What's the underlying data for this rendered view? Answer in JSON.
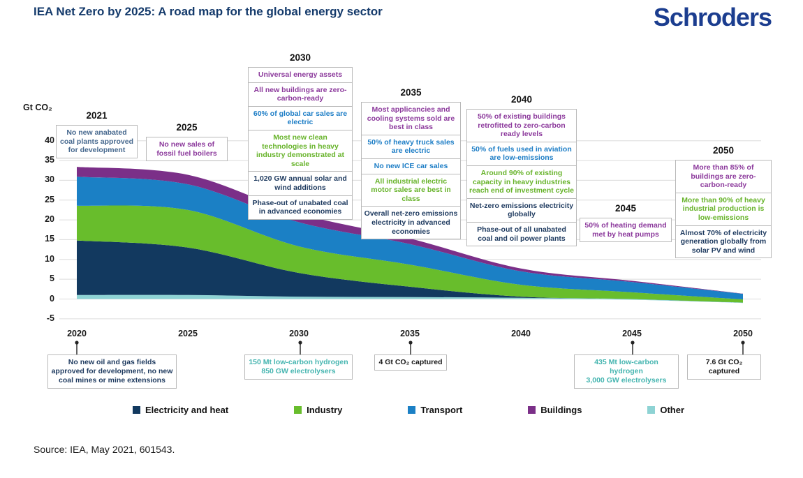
{
  "header": {
    "title": "IEA Net Zero by 2025: A road map for the global energy sector",
    "logo": "Schroders"
  },
  "source": "Source: IEA, May 2021, 601543.",
  "palette": {
    "steel": "#46688e",
    "purple": "#8c3a9c",
    "blue": "#1e7ec6",
    "green": "#67b32a",
    "dark": "#1e3a5f",
    "teal": "#45b5b0",
    "black": "#1a1a1a"
  },
  "chart_data": {
    "type": "area",
    "stacked": true,
    "title": "IEA Net Zero by 2025: A road map for the global energy sector",
    "xlabel": "",
    "ylabel": "Gt CO₂",
    "x": [
      2020,
      2025,
      2030,
      2035,
      2040,
      2045,
      2050
    ],
    "series": [
      {
        "name": "Other",
        "color": "#8ed3d4",
        "values": [
          1.0,
          1.0,
          0.6,
          0.5,
          0.3,
          0.2,
          0.1
        ]
      },
      {
        "name": "Electricity and heat",
        "color": "#12395f",
        "values": [
          13.8,
          12.0,
          6.0,
          2.6,
          0.3,
          -0.2,
          -1.0
        ]
      },
      {
        "name": "Industry",
        "color": "#68bd2c",
        "values": [
          8.8,
          9.5,
          6.7,
          5.6,
          3.0,
          1.7,
          0.8
        ]
      },
      {
        "name": "Transport",
        "color": "#1b80c5",
        "values": [
          7.3,
          6.5,
          6.1,
          5.2,
          3.4,
          2.6,
          1.4
        ]
      },
      {
        "name": "Buildings",
        "color": "#7b2f88",
        "values": [
          2.5,
          2.4,
          2.2,
          1.4,
          0.7,
          0.3,
          0.05
        ]
      }
    ],
    "legend": [
      {
        "label": "Electricity and heat",
        "color": "#12395f"
      },
      {
        "label": "Industry",
        "color": "#68bd2c"
      },
      {
        "label": "Transport",
        "color": "#1b80c5"
      },
      {
        "label": "Buildings",
        "color": "#7b2f88"
      },
      {
        "label": "Other",
        "color": "#8ed3d4"
      }
    ],
    "ylim": [
      -5,
      40
    ],
    "yticks": [
      40,
      35,
      30,
      25,
      20,
      15,
      10,
      5,
      0,
      -5
    ],
    "xticks": [
      2020,
      2025,
      2030,
      2035,
      2040,
      2045,
      2050
    ],
    "grid": true,
    "legend_position": "bottom"
  },
  "milestones": [
    {
      "year": "2021",
      "items": [
        {
          "color": "steel",
          "text": "No new anabated coal plants approved for development"
        }
      ]
    },
    {
      "year": "2025",
      "items": [
        {
          "color": "purple",
          "text": "No new sales of fossil fuel boilers"
        }
      ]
    },
    {
      "year": "2030",
      "items": [
        {
          "color": "purple",
          "text": "Universal energy assets"
        },
        {
          "color": "purple",
          "text": "All new buildings are zero-carbon-ready"
        },
        {
          "color": "blue",
          "text": "60% of global car sales are electric"
        },
        {
          "color": "green",
          "text": "Most new clean technologies in heavy industry demonstrated at scale"
        },
        {
          "color": "dark",
          "text": "1,020 GW annual solar and wind additions"
        },
        {
          "color": "dark",
          "text": "Phase-out of unabated coal in advanced economies"
        }
      ]
    },
    {
      "year": "2035",
      "items": [
        {
          "color": "purple",
          "text": "Most applicancies and cooling systems sold are best in class"
        },
        {
          "color": "blue",
          "text": "50% of heavy truck sales are electric"
        },
        {
          "color": "blue",
          "text": "No new ICE car sales"
        },
        {
          "color": "green",
          "text": "All industrial electric motor sales are best in class"
        },
        {
          "color": "dark",
          "text": "Overall net-zero emissions electricity in advanced economies"
        }
      ]
    },
    {
      "year": "2040",
      "items": [
        {
          "color": "purple",
          "text": "50% of existing buildings retrofitted to zero-carbon ready levels"
        },
        {
          "color": "blue",
          "text": "50% of fuels used in aviation are low-emissions"
        },
        {
          "color": "green",
          "text": "Around 90% of existing capacity in heavy industries reach end of investment cycle"
        },
        {
          "color": "dark",
          "text": "Net-zero emissions electricity globally"
        },
        {
          "color": "dark",
          "text": "Phase-out of all unabated coal and oil power plants"
        }
      ]
    },
    {
      "year": "2045",
      "items": [
        {
          "color": "purple",
          "text": "50% of heating demand met by heat pumps"
        }
      ]
    },
    {
      "year": "2050",
      "items": [
        {
          "color": "purple",
          "text": "More than 85% of buildings are zero-carbon-ready"
        },
        {
          "color": "green",
          "text": "More than 90% of heavy industrial production is low-emissions"
        },
        {
          "color": "dark",
          "text": "Almost 70% of electricity generation globally from solar PV and wind"
        }
      ]
    }
  ],
  "bottom_notes": [
    {
      "year": "2020",
      "color": "dark",
      "text": "No new oil and gas fields approved for development, no new coal mines or mine extensions"
    },
    {
      "year": "2030",
      "color": "teal",
      "text": "150 Mt low-carbon hydrogen\n850 GW electrolysers"
    },
    {
      "year": "2035",
      "color": "black",
      "text": "4 Gt CO₂ captured"
    },
    {
      "year": "2045",
      "color": "teal",
      "text": "435 Mt low-carbon hydrogen\n3,000 GW electrolysers"
    },
    {
      "year": "2050",
      "color": "black",
      "text": "7.6 Gt CO₂ captured"
    }
  ]
}
